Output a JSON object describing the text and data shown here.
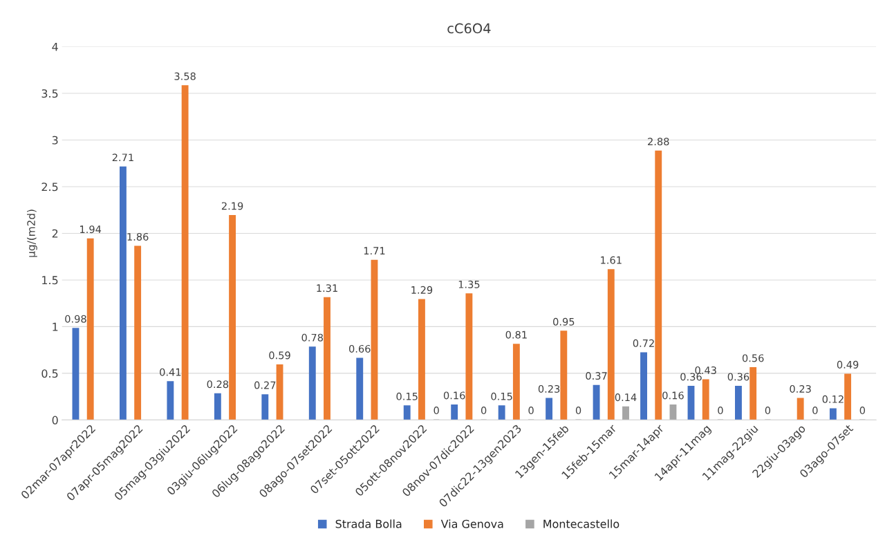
{
  "chart_data": {
    "type": "bar",
    "title": "cC6O4",
    "ylabel": "µg/(m2d)",
    "categories": [
      "02mar-07apr2022",
      "07apr-05mag2022",
      "05mag-03giu2022",
      "03giu-06lug2022",
      "06lug-08ago2022",
      "08ago-07set2022",
      "07set-05ott2022",
      "05ott-08nov2022",
      "08nov-07dic2022",
      "07dic22-13gen2023",
      "13gen-15feb",
      "15feb-15mar",
      "15mar-14apr",
      "14apr-11mag",
      "11mag-22giu",
      "22giu-03ago",
      "03ago-07set"
    ],
    "series": [
      {
        "name": "Strada Bolla",
        "color": "#4472c4",
        "values": [
          0.98,
          2.71,
          0.41,
          0.28,
          0.27,
          0.78,
          0.66,
          0.15,
          0.16,
          0.15,
          0.23,
          0.37,
          0.72,
          0.36,
          0.36,
          null,
          0.12
        ]
      },
      {
        "name": "Via Genova",
        "color": "#ed7d31",
        "values": [
          1.94,
          1.86,
          3.58,
          2.19,
          0.59,
          1.31,
          1.71,
          1.29,
          1.35,
          0.81,
          0.95,
          1.61,
          2.88,
          0.43,
          0.56,
          0.23,
          0.49
        ]
      },
      {
        "name": "Montecastello",
        "color": "#a5a5a5",
        "values": [
          null,
          null,
          null,
          null,
          null,
          null,
          null,
          0,
          0,
          0,
          0,
          0.14,
          0.16,
          0,
          0,
          0,
          0
        ]
      }
    ],
    "ylim": [
      0,
      4
    ],
    "yticks": [
      0,
      0.5,
      1,
      1.5,
      2,
      2.5,
      3,
      3.5,
      4
    ],
    "grid": "y",
    "legend": "bottom",
    "data_labels": true
  }
}
